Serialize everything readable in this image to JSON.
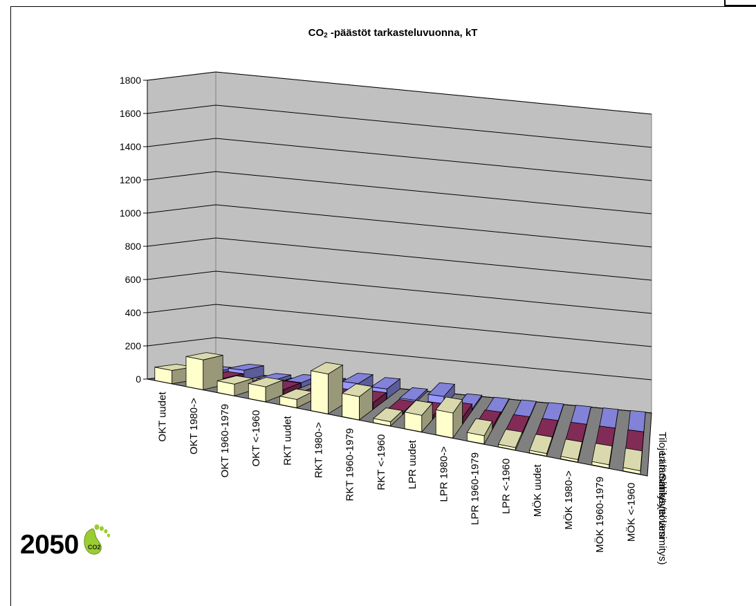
{
  "chart_data": {
    "type": "bar",
    "subtype": "3d-column-grouped",
    "title_main": "CO",
    "title_sub": "2",
    "title_rest": " -päästöt tarkasteluvuonna, kT",
    "ylim": [
      0,
      1800
    ],
    "yticks": [
      "0",
      "200",
      "400",
      "600",
      "800",
      "1000",
      "1200",
      "1400",
      "1600",
      "1800"
    ],
    "grid": true,
    "categories": [
      "OKT uudet",
      "OKT 1980->",
      "OKT 1960-1979",
      "OKT <-1960",
      "RKT uudet",
      "RKT 1980->",
      "RKT 1960-1979",
      "RKT <-1960",
      "LPR uudet",
      "LPR 1980->",
      "LPR 1960-1979",
      "LPR <-1960",
      "MÖK uudet",
      "MÖK 1980->",
      "MÖK 1960-1979",
      "MÖK <-1960"
    ],
    "series": [
      {
        "name": "Sähkö (ei lämmitys)",
        "color": "#ffffcc",
        "values": [
          80,
          180,
          70,
          90,
          50,
          240,
          140,
          25,
          100,
          150,
          50,
          15,
          15,
          15,
          20,
          20
        ]
      },
      {
        "name": "Lämmin käyttövesi",
        "color": "#993366",
        "values": [
          10,
          40,
          10,
          30,
          15,
          30,
          40,
          10,
          20,
          40,
          15,
          10,
          10,
          10,
          10,
          10
        ]
      },
      {
        "name": "Tilojen lämmitys",
        "color": "#9999ff",
        "values": [
          30,
          60,
          20,
          30,
          30,
          70,
          60,
          15,
          60,
          10,
          5,
          5,
          5,
          5,
          5,
          5
        ]
      }
    ]
  },
  "year_label": "2050",
  "footprint_text": "CO2",
  "colors": {
    "wall": "#c0c0c0",
    "floor": "#808080"
  }
}
